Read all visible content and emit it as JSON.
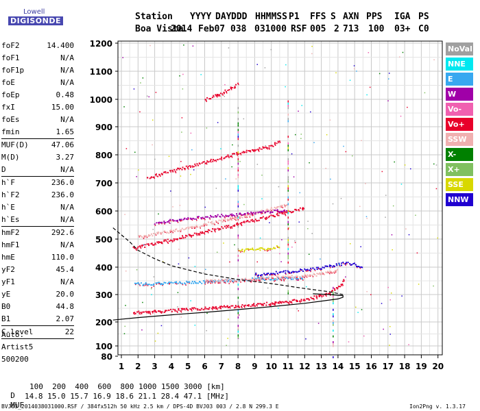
{
  "logo": {
    "line1": "Lowell",
    "line2": "DIGISONDE"
  },
  "header": {
    "columns": [
      "Station",
      "YYYY",
      "DAY",
      "DDD",
      "HHMMSS",
      "P1",
      "FFS",
      "S",
      "AXN",
      "PPS",
      "IGA",
      "PS"
    ],
    "values": [
      "Boa Vista",
      "2014",
      "Feb07",
      "038",
      "031000",
      "RSF",
      "005",
      "2",
      "713",
      "100",
      "03+",
      "C0"
    ]
  },
  "params": [
    {
      "group": [
        {
          "name": "foF2",
          "value": "14.400"
        },
        {
          "name": "foF1",
          "value": "N/A"
        },
        {
          "name": "foF1p",
          "value": "N/A"
        },
        {
          "name": "foE",
          "value": "N/A"
        },
        {
          "name": "foEp",
          "value": "0.48"
        },
        {
          "name": "fxI",
          "value": "15.00"
        },
        {
          "name": "foEs",
          "value": "N/A"
        },
        {
          "name": "fmin",
          "value": "1.65"
        }
      ]
    },
    {
      "group": [
        {
          "name": "MUF(D)",
          "value": "47.06"
        },
        {
          "name": "M(D)",
          "value": "3.27"
        },
        {
          "name": "D",
          "value": "N/A"
        }
      ]
    },
    {
      "group": [
        {
          "name": "h`F",
          "value": "236.0"
        },
        {
          "name": "h`F2",
          "value": "236.0"
        },
        {
          "name": "h`E",
          "value": "N/A"
        },
        {
          "name": "h`Es",
          "value": "N/A"
        }
      ]
    },
    {
      "group": [
        {
          "name": "hmF2",
          "value": "292.6"
        },
        {
          "name": "hmF1",
          "value": "N/A"
        },
        {
          "name": "hmE",
          "value": "110.0"
        },
        {
          "name": "yF2",
          "value": "45.4"
        },
        {
          "name": "yF1",
          "value": "N/A"
        },
        {
          "name": "yE",
          "value": "20.0"
        },
        {
          "name": "B0",
          "value": "44.8"
        },
        {
          "name": "B1",
          "value": "2.07"
        }
      ]
    },
    {
      "group": [
        {
          "name": "C-level",
          "value": "22"
        }
      ]
    }
  ],
  "auto": {
    "line1": "Auto:",
    "line2": "Artist5",
    "line3": "500200"
  },
  "legend": [
    {
      "label": "NoVal",
      "color": "#a0a0a0",
      "text": "#ffffff"
    },
    {
      "label": "NNE",
      "color": "#00e8f0",
      "text": "#ffffff"
    },
    {
      "label": "E",
      "color": "#38a8f0",
      "text": "#ffffff"
    },
    {
      "label": "W",
      "color": "#a000a8",
      "text": "#ffffff"
    },
    {
      "label": "Vo-",
      "color": "#f060b0",
      "text": "#ffffff"
    },
    {
      "label": "Vo+",
      "color": "#e8002a",
      "text": "#ffffff"
    },
    {
      "label": "SSW",
      "color": "#f0b0b0",
      "text": "#ffffff"
    },
    {
      "label": "X-",
      "color": "#008000",
      "text": "#ffffff"
    },
    {
      "label": "X+",
      "color": "#80c060",
      "text": "#ffffff"
    },
    {
      "label": "SSE",
      "color": "#d8d800",
      "text": "#ffffff"
    },
    {
      "label": "NNW",
      "color": "#2000d0",
      "text": "#ffffff"
    }
  ],
  "footer": {
    "dist_label": "D",
    "dist_values": "100  200  400  600  800 1000 1500 3000 [km]",
    "muf_label": "MUF",
    "muf_values": "14.8 15.0 15.7 16.9 18.6 21.1 28.4 47.1 [MHz]",
    "file_line": "BVJ03_2014038031000.RSF / 384fx512h 50 kHz 2.5 km / DPS-4D BVJ03 003 / 2.8 N 299.3 E",
    "version": "Ion2Png v. 1.3.17"
  },
  "chart_data": {
    "type": "scatter",
    "title": "",
    "xlabel": "",
    "ylabel": "",
    "xlim": [
      0.5,
      20.3
    ],
    "ylim": [
      80,
      1210
    ],
    "y_scale": "nonlinear (expanded near bottom)",
    "x_ticks": [
      "1",
      "2",
      "3",
      "4",
      "5",
      "6",
      "7",
      "8",
      "9",
      "10",
      "11",
      "12",
      "13",
      "14",
      "15",
      "16",
      "17",
      "18",
      "19",
      "20"
    ],
    "y_ticks": [
      "80",
      "100",
      "200",
      "300",
      "400",
      "500",
      "600",
      "700",
      "800",
      "900",
      "1000",
      "1100",
      "1200"
    ],
    "grid": true,
    "legend_position": "right",
    "series": [
      {
        "name": "Vo+",
        "color": "#e8002a",
        "points": [
          [
            1.7,
            236
          ],
          [
            3,
            240
          ],
          [
            4,
            244
          ],
          [
            5,
            248
          ],
          [
            6,
            252
          ],
          [
            7,
            256
          ],
          [
            8,
            260
          ],
          [
            9,
            265
          ],
          [
            10,
            270
          ],
          [
            11,
            276
          ],
          [
            12,
            284
          ],
          [
            13,
            298
          ],
          [
            13.5,
            310
          ],
          [
            14,
            330
          ],
          [
            14.4,
            360
          ]
        ]
      },
      {
        "name": "E",
        "color": "#38a8f0",
        "points": [
          [
            1.8,
            340
          ],
          [
            2.5,
            341
          ],
          [
            3,
            342
          ],
          [
            4,
            344
          ],
          [
            5,
            346
          ],
          [
            6,
            348
          ],
          [
            7,
            352
          ],
          [
            8,
            356
          ],
          [
            9,
            358
          ],
          [
            10,
            360
          ],
          [
            11,
            362
          ],
          [
            12,
            364
          ]
        ]
      },
      {
        "name": "SSW",
        "color": "#f0b0b0",
        "points": [
          [
            6,
            352
          ],
          [
            8,
            356
          ],
          [
            10,
            362
          ],
          [
            12,
            370
          ],
          [
            13,
            378
          ],
          [
            14,
            392
          ]
        ]
      },
      {
        "name": "Vo+",
        "color": "#e8002a",
        "points": [
          [
            1.7,
            470
          ],
          [
            3,
            486
          ],
          [
            4,
            500
          ],
          [
            5,
            514
          ],
          [
            6,
            528
          ],
          [
            7,
            542
          ],
          [
            8,
            556
          ],
          [
            9,
            570
          ],
          [
            10,
            584
          ],
          [
            11,
            598
          ],
          [
            12,
            612
          ]
        ]
      },
      {
        "name": "SSW",
        "color": "#f0b0b0",
        "points": [
          [
            2,
            510
          ],
          [
            4,
            530
          ],
          [
            6,
            555
          ],
          [
            8,
            580
          ],
          [
            10,
            610
          ],
          [
            11,
            625
          ]
        ]
      },
      {
        "name": "W",
        "color": "#a000a8",
        "points": [
          [
            3,
            560
          ],
          [
            4,
            568
          ],
          [
            5,
            576
          ],
          [
            8,
            590
          ],
          [
            10,
            600
          ],
          [
            11,
            606
          ]
        ]
      },
      {
        "name": "Vo+",
        "color": "#e8002a",
        "points": [
          [
            2.5,
            720
          ],
          [
            4,
            744
          ],
          [
            5,
            760
          ],
          [
            6,
            776
          ],
          [
            7,
            792
          ],
          [
            8,
            808
          ],
          [
            9,
            820
          ],
          [
            10,
            834
          ],
          [
            10.5,
            850
          ]
        ]
      },
      {
        "name": "Vo+",
        "color": "#e8002a",
        "points": [
          [
            6,
            1000
          ],
          [
            6.5,
            1012
          ],
          [
            7,
            1025
          ],
          [
            7.5,
            1040
          ],
          [
            8,
            1058
          ]
        ]
      },
      {
        "name": "NNW",
        "color": "#2000d0",
        "points": [
          [
            9,
            375
          ],
          [
            10,
            380
          ],
          [
            11,
            385
          ],
          [
            12,
            392
          ],
          [
            13,
            400
          ],
          [
            14,
            412
          ],
          [
            14.5,
            418
          ],
          [
            15,
            410
          ],
          [
            15.5,
            400
          ]
        ]
      },
      {
        "name": "SSE",
        "color": "#d8d800",
        "points": [
          [
            8,
            460
          ],
          [
            9,
            466
          ],
          [
            10,
            470
          ],
          [
            10.5,
            476
          ]
        ]
      }
    ],
    "profile_solid": [
      [
        0.5,
        207
      ],
      [
        2,
        216
      ],
      [
        4,
        226
      ],
      [
        6,
        235
      ],
      [
        8,
        245
      ],
      [
        10,
        256
      ],
      [
        12,
        268
      ],
      [
        13,
        276
      ],
      [
        14,
        284
      ],
      [
        14.3,
        290
      ],
      [
        14.3,
        296
      ],
      [
        13.5,
        300
      ],
      [
        12.5,
        303
      ]
    ],
    "profile_dashed": [
      [
        0.5,
        540
      ],
      [
        1.5,
        490
      ],
      [
        2,
        460
      ],
      [
        3,
        430
      ],
      [
        4,
        405
      ],
      [
        6,
        375
      ],
      [
        8,
        355
      ],
      [
        10,
        340
      ],
      [
        12,
        322
      ],
      [
        13.5,
        310
      ],
      [
        14.3,
        300
      ]
    ]
  }
}
